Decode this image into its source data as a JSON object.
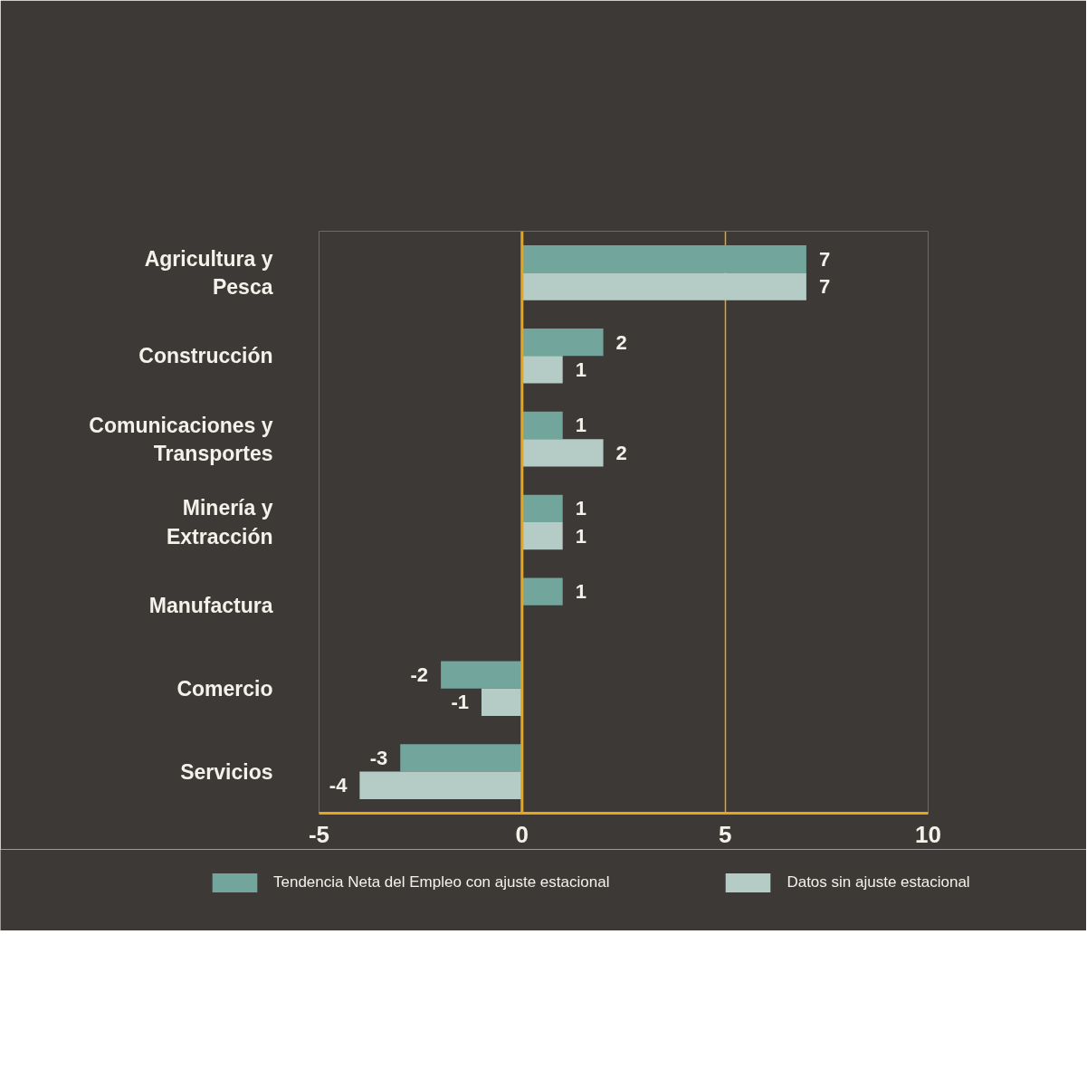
{
  "chart_data": {
    "type": "bar",
    "orientation": "horizontal",
    "categories": [
      "Agricultura y Pesca",
      "Construcción",
      "Comunicaciones y Transportes",
      "Minería y Extracción",
      "Manufactura",
      "Comercio",
      "Servicios"
    ],
    "series": [
      {
        "name": "Tendencia Neta del Empleo con ajuste estacional",
        "color": "#72a59b",
        "values": [
          7,
          2,
          1,
          1,
          1,
          -2,
          -3
        ]
      },
      {
        "name": "Datos sin ajuste estacional",
        "color": "#b4cbc6",
        "values": [
          7,
          1,
          2,
          1,
          null,
          -1,
          -4
        ]
      }
    ],
    "xlim": [
      -5,
      10
    ],
    "xticks": [
      -5,
      0,
      5,
      10
    ],
    "grid": "x",
    "legend": "bottom",
    "data_labels": true,
    "ref_lines": [
      {
        "axis": "x",
        "value": 0,
        "color": "#e8a51c"
      }
    ]
  }
}
